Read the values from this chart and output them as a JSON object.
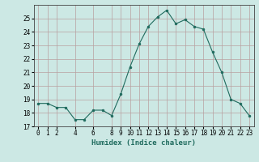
{
  "x": [
    0,
    1,
    2,
    3,
    4,
    5,
    6,
    7,
    8,
    9,
    10,
    11,
    12,
    13,
    14,
    15,
    16,
    17,
    18,
    19,
    20,
    21,
    22,
    23
  ],
  "y": [
    18.7,
    18.7,
    18.4,
    18.4,
    17.5,
    17.5,
    18.2,
    18.2,
    17.8,
    19.4,
    21.4,
    23.1,
    24.4,
    25.1,
    25.6,
    24.6,
    24.9,
    24.4,
    24.2,
    22.5,
    21.0,
    19.0,
    18.7,
    17.8
  ],
  "line_color": "#1f6b5e",
  "marker": "o",
  "marker_size": 2.0,
  "bg_color": "#cce8e4",
  "grid_color": "#b8a0a0",
  "xlabel": "Humidex (Indice chaleur)",
  "ylim": [
    17,
    26
  ],
  "yticks": [
    17,
    18,
    19,
    20,
    21,
    22,
    23,
    24,
    25
  ],
  "xtick_positions": [
    0,
    1,
    2,
    4,
    6,
    8,
    9,
    10,
    11,
    12,
    13,
    14,
    15,
    16,
    17,
    18,
    19,
    20,
    21,
    22,
    23
  ],
  "xtick_labels": [
    "0",
    "1",
    "2",
    "4",
    "6",
    "8",
    "9",
    "10",
    "11",
    "12",
    "13",
    "14",
    "15",
    "16",
    "17",
    "18",
    "19",
    "20",
    "21",
    "22",
    "23"
  ],
  "label_fontsize": 6.5,
  "tick_fontsize": 5.5
}
